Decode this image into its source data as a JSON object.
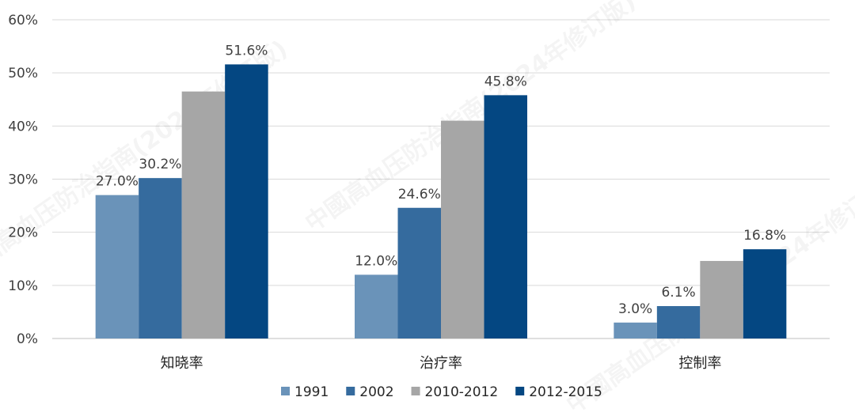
{
  "chart_data": {
    "type": "bar",
    "categories": [
      "知晓率",
      "治疗率",
      "控制率"
    ],
    "series": [
      {
        "name": "1991",
        "values": [
          27.0,
          12.0,
          3.0
        ],
        "labels": [
          "27.0%",
          "12.0%",
          "3.0%"
        ],
        "color": "#6a93b9"
      },
      {
        "name": "2002",
        "values": [
          30.2,
          24.6,
          6.1
        ],
        "labels": [
          "30.2%",
          "24.6%",
          "6.1%"
        ],
        "color": "#356b9e"
      },
      {
        "name": "2010-2012",
        "values": [
          46.5,
          41.0,
          14.6
        ],
        "labels": [
          "",
          "",
          ""
        ],
        "color": "#a6a6a6"
      },
      {
        "name": "2012-2015",
        "values": [
          51.6,
          45.8,
          16.8
        ],
        "labels": [
          "51.6%",
          "45.8%",
          "16.8%"
        ],
        "color": "#044782"
      }
    ],
    "y_ticks": [
      "0%",
      "10%",
      "20%",
      "30%",
      "40%",
      "50%",
      "60%"
    ],
    "ylim": [
      0,
      60
    ],
    "grid": true,
    "legend_position": "bottom",
    "watermark": "中國高血压防治指南(2024年修订版)"
  }
}
